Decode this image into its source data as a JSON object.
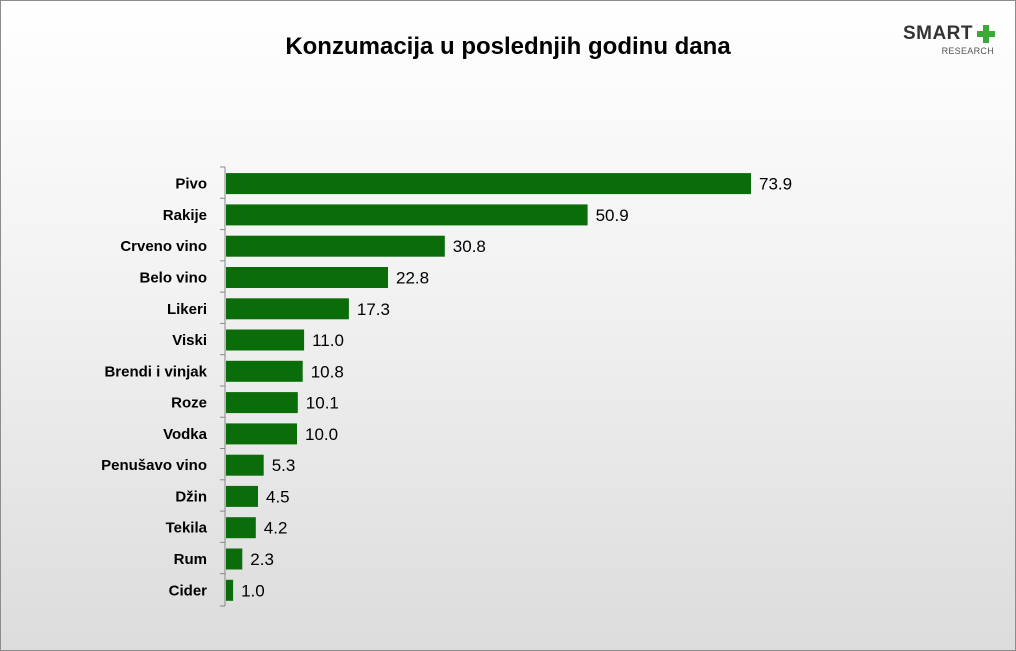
{
  "chart_data": {
    "type": "bar",
    "orientation": "horizontal",
    "title": "Konzumacija u poslednjih godinu dana",
    "categories": [
      "Pivo",
      "Rakije",
      "Crveno vino",
      "Belo vino",
      "Likeri",
      "Viski",
      "Brendi i vinjak",
      "Roze",
      "Vodka",
      "Penušavo vino",
      "Džin",
      "Tekila",
      "Rum",
      "Cider"
    ],
    "values": [
      73.9,
      50.9,
      30.8,
      22.8,
      17.3,
      11.0,
      10.8,
      10.1,
      10.0,
      5.3,
      4.5,
      4.2,
      2.3,
      1.0
    ],
    "value_labels": [
      "73.9",
      "50.9",
      "30.8",
      "22.8",
      "17.3",
      "11.0",
      "10.8",
      "10.1",
      "10.0",
      "5.3",
      "4.5",
      "4.2",
      "2.3",
      "1.0"
    ],
    "xlim": [
      0,
      73.9
    ],
    "grid": false,
    "legend": "none",
    "bar_color": "#0a6d0a"
  },
  "logo": {
    "word": "SMART",
    "sub": "RESEARCH",
    "plus_color": "#3aa935"
  }
}
